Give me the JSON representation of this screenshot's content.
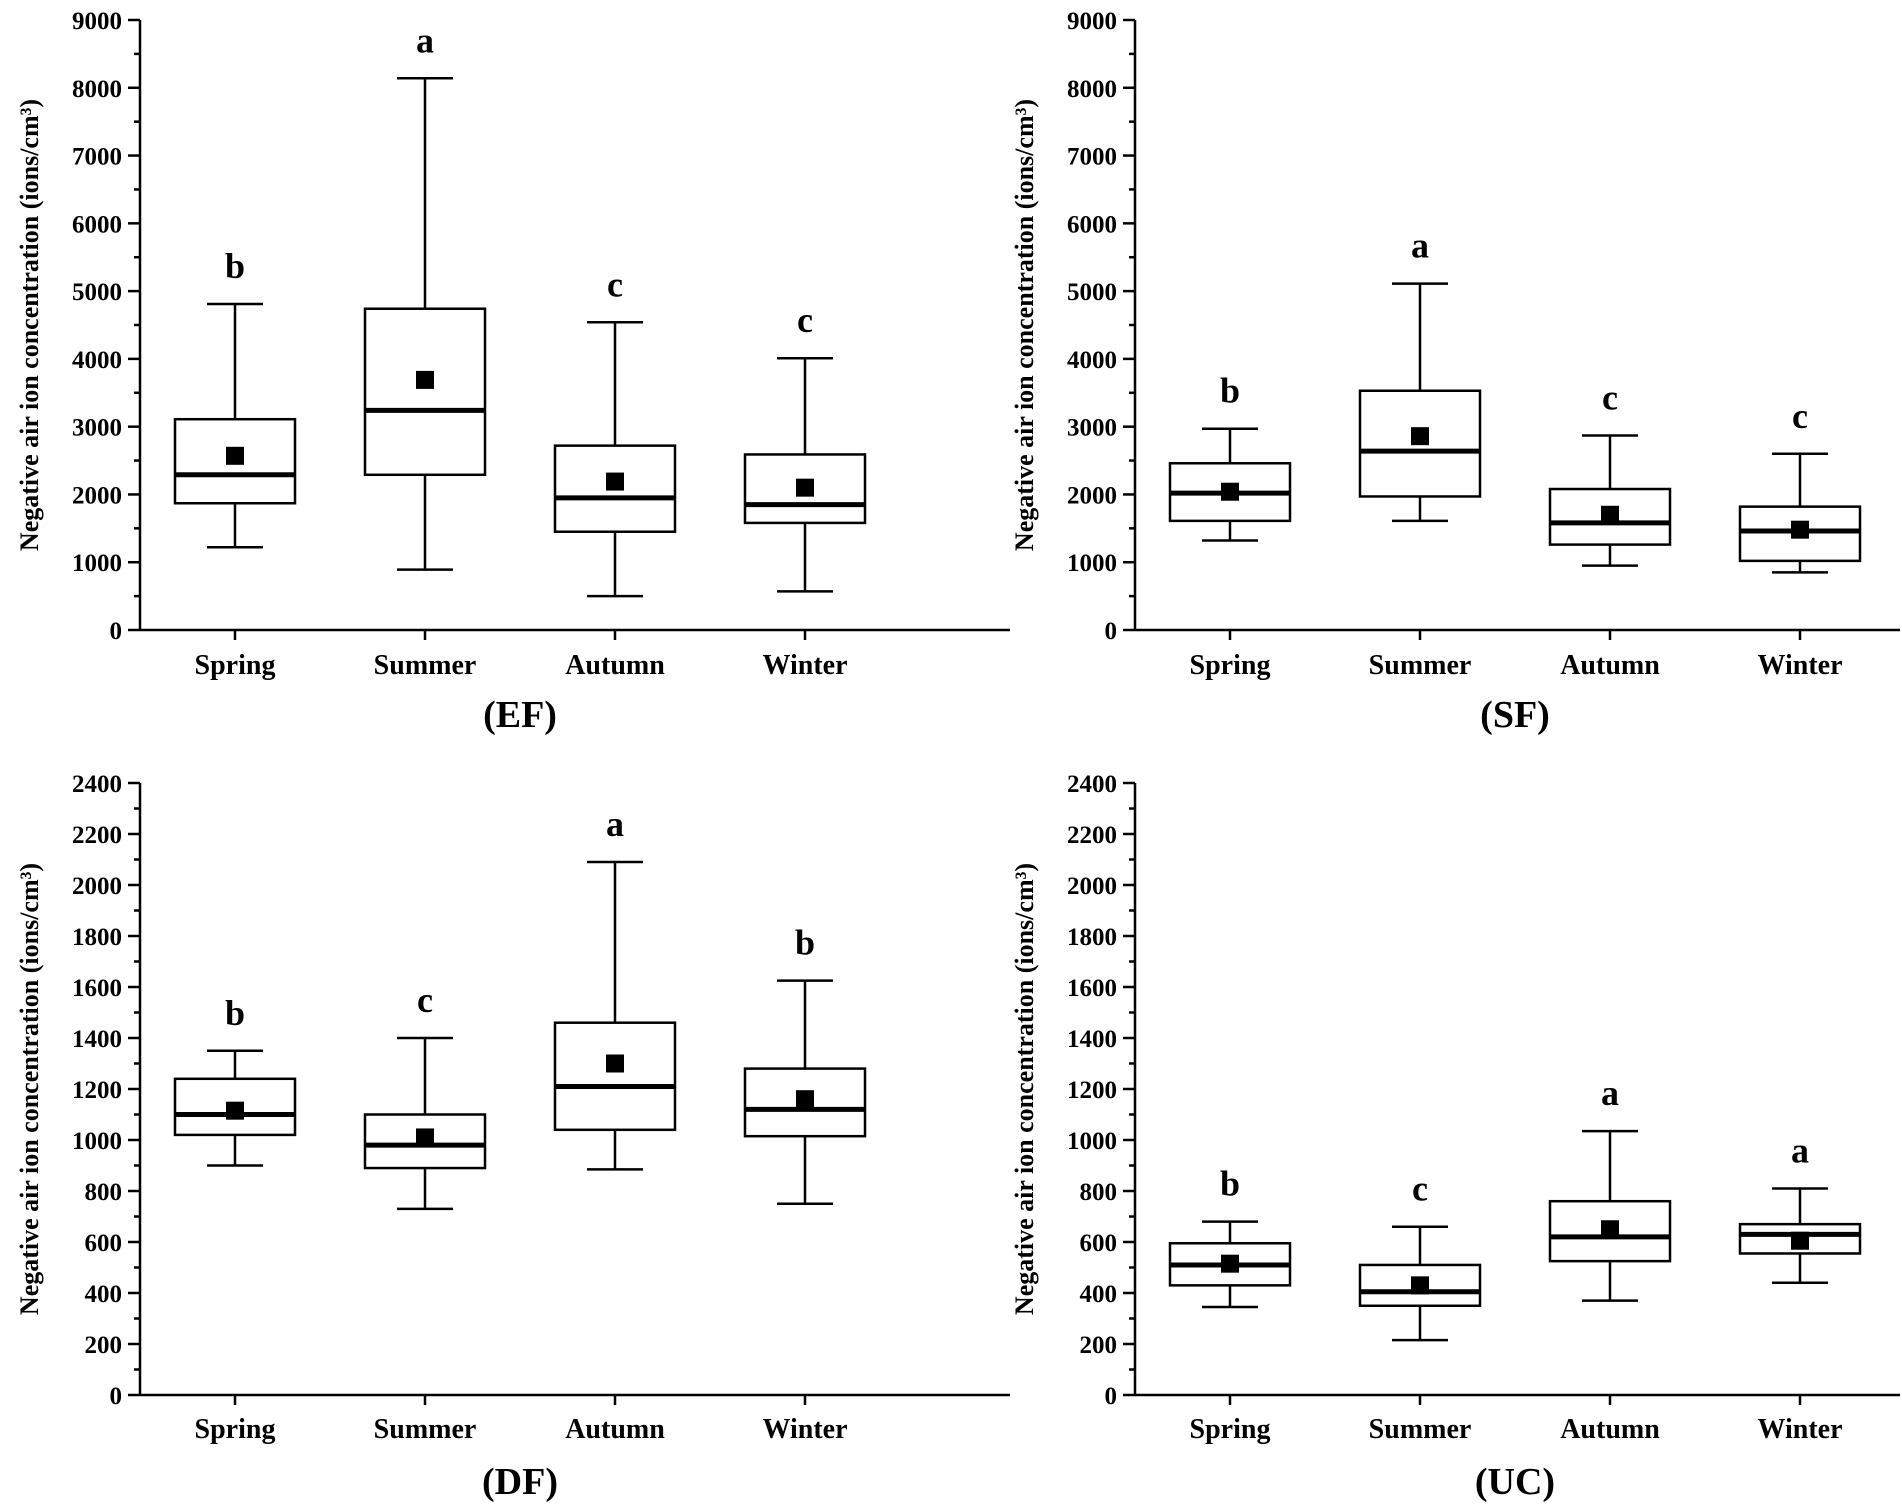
{
  "chart_data": [
    {
      "type": "box",
      "panel_label": "(EF)",
      "ylabel": "Negative air ion concentration (ions/cm³)",
      "ylim": [
        0,
        9000
      ],
      "yticks": [
        0,
        1000,
        2000,
        3000,
        4000,
        5000,
        6000,
        7000,
        8000,
        9000
      ],
      "minor_step": 500,
      "categories": [
        "Spring",
        "Summer",
        "Autumn",
        "Winter"
      ],
      "boxes": [
        {
          "min": 1220,
          "q1": 1870,
          "median": 2290,
          "q3": 3110,
          "max": 4810,
          "mean": 2570,
          "letter": "b"
        },
        {
          "min": 890,
          "q1": 2290,
          "median": 3240,
          "q3": 4740,
          "max": 8140,
          "mean": 3690,
          "letter": "a"
        },
        {
          "min": 500,
          "q1": 1450,
          "median": 1950,
          "q3": 2720,
          "max": 4540,
          "mean": 2190,
          "letter": "c"
        },
        {
          "min": 570,
          "q1": 1580,
          "median": 1850,
          "q3": 2590,
          "max": 4010,
          "mean": 2100,
          "letter": "c"
        }
      ]
    },
    {
      "type": "box",
      "panel_label": "(SF)",
      "ylabel": "Negative air ion concentration (ions/cm³)",
      "ylim": [
        0,
        9000
      ],
      "yticks": [
        0,
        1000,
        2000,
        3000,
        4000,
        5000,
        6000,
        7000,
        8000,
        9000
      ],
      "minor_step": 500,
      "categories": [
        "Spring",
        "Summer",
        "Autumn",
        "Winter"
      ],
      "boxes": [
        {
          "min": 1320,
          "q1": 1610,
          "median": 2020,
          "q3": 2460,
          "max": 2970,
          "mean": 2040,
          "letter": "b"
        },
        {
          "min": 1610,
          "q1": 1970,
          "median": 2640,
          "q3": 3530,
          "max": 5110,
          "mean": 2860,
          "letter": "a"
        },
        {
          "min": 950,
          "q1": 1260,
          "median": 1580,
          "q3": 2080,
          "max": 2870,
          "mean": 1700,
          "letter": "c"
        },
        {
          "min": 850,
          "q1": 1020,
          "median": 1460,
          "q3": 1820,
          "max": 2600,
          "mean": 1480,
          "letter": "c"
        }
      ]
    },
    {
      "type": "box",
      "panel_label": "(DF)",
      "ylabel": "Negative air ion concentration (ions/cm³)",
      "ylim": [
        0,
        2400
      ],
      "yticks": [
        0,
        200,
        400,
        600,
        800,
        1000,
        1200,
        1400,
        1600,
        1800,
        2000,
        2200,
        2400
      ],
      "minor_step": 100,
      "categories": [
        "Spring",
        "Summer",
        "Autumn",
        "Winter"
      ],
      "boxes": [
        {
          "min": 900,
          "q1": 1020,
          "median": 1100,
          "q3": 1240,
          "max": 1350,
          "mean": 1115,
          "letter": "b"
        },
        {
          "min": 730,
          "q1": 890,
          "median": 980,
          "q3": 1100,
          "max": 1400,
          "mean": 1010,
          "letter": "c"
        },
        {
          "min": 885,
          "q1": 1040,
          "median": 1210,
          "q3": 1460,
          "max": 2090,
          "mean": 1300,
          "letter": "a"
        },
        {
          "min": 750,
          "q1": 1015,
          "median": 1120,
          "q3": 1280,
          "max": 1625,
          "mean": 1160,
          "letter": "b"
        }
      ]
    },
    {
      "type": "box",
      "panel_label": "(UC)",
      "ylabel": "Negative air ion concentration (ions/cm³)",
      "ylim": [
        0,
        2400
      ],
      "yticks": [
        0,
        200,
        400,
        600,
        800,
        1000,
        1200,
        1400,
        1600,
        1800,
        2000,
        2200,
        2400
      ],
      "minor_step": 100,
      "categories": [
        "Spring",
        "Summer",
        "Autumn",
        "Winter"
      ],
      "boxes": [
        {
          "min": 345,
          "q1": 430,
          "median": 510,
          "q3": 595,
          "max": 680,
          "mean": 515,
          "letter": "b"
        },
        {
          "min": 215,
          "q1": 350,
          "median": 405,
          "q3": 510,
          "max": 660,
          "mean": 430,
          "letter": "c"
        },
        {
          "min": 370,
          "q1": 525,
          "median": 620,
          "q3": 760,
          "max": 1035,
          "mean": 650,
          "letter": "a"
        },
        {
          "min": 440,
          "q1": 555,
          "median": 630,
          "q3": 670,
          "max": 810,
          "mean": 605,
          "letter": "a"
        }
      ]
    }
  ]
}
